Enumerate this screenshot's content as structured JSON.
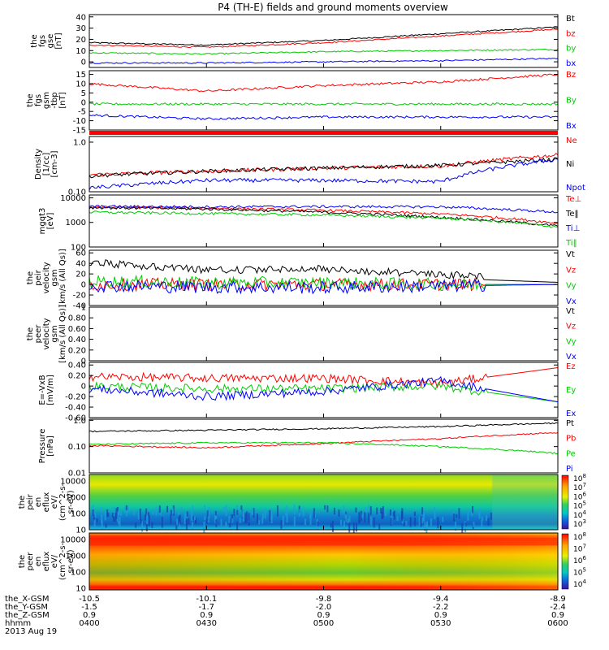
{
  "chart_data": [
    {
      "type": "line",
      "ylabel": [
        "the",
        "fgs",
        "gse",
        "[nT]"
      ],
      "yticks": [
        0,
        10,
        20,
        30,
        40
      ],
      "ylim": [
        -5,
        42
      ],
      "series": [
        {
          "name": "Bt",
          "color": "#000000",
          "x": [
            "0400",
            "0430",
            "0500",
            "0530",
            "0600"
          ],
          "values": [
            17,
            15,
            19,
            25,
            31
          ]
        },
        {
          "name": "bz",
          "color": "#ff0000",
          "x": [
            "0400",
            "0430",
            "0500",
            "0530",
            "0600"
          ],
          "values": [
            15,
            13,
            17,
            23,
            29
          ]
        },
        {
          "name": "by",
          "color": "#00cc00",
          "x": [
            "0400",
            "0430",
            "0500",
            "0530",
            "0600"
          ],
          "values": [
            8,
            7,
            9,
            10,
            11
          ]
        },
        {
          "name": "bx",
          "color": "#0000ff",
          "x": [
            "0400",
            "0430",
            "0500",
            "0530",
            "0600"
          ],
          "values": [
            -1,
            -1,
            0,
            1,
            3
          ]
        }
      ]
    },
    {
      "type": "line",
      "ylabel": [
        "the",
        "fgs",
        "gsm",
        "-tbp",
        "[nT]"
      ],
      "yticks": [
        -15,
        -10,
        -5,
        0,
        5,
        10,
        15
      ],
      "ylim": [
        -15,
        17
      ],
      "series": [
        {
          "name": "Bz",
          "color": "#ff0000",
          "x": [
            "0400",
            "0430",
            "0500",
            "0530",
            "0600"
          ],
          "values": [
            10,
            6,
            9,
            11,
            15
          ]
        },
        {
          "name": "By",
          "color": "#00cc00",
          "x": [
            "0400",
            "0430",
            "0500",
            "0530",
            "0600"
          ],
          "values": [
            -1,
            -1,
            -1,
            -1,
            -1
          ]
        },
        {
          "name": "Bx",
          "color": "#0000ff",
          "x": [
            "0400",
            "0430",
            "0500",
            "0530",
            "0600"
          ],
          "values": [
            -7,
            -9,
            -8,
            -8,
            -8
          ]
        }
      ]
    },
    {
      "type": "line",
      "yscale": "log",
      "ylabel": [
        "Density",
        "[1/cc]",
        "[cm-3]"
      ],
      "yticks": [
        0.1,
        1.0
      ],
      "ylim": [
        0.1,
        1.3
      ],
      "series": [
        {
          "name": "Ne",
          "color": "#ff0000",
          "x": [
            "0400",
            "0430",
            "0500",
            "0530",
            "0600"
          ],
          "values": [
            0.22,
            0.26,
            0.3,
            0.33,
            0.55
          ]
        },
        {
          "name": "Ni",
          "color": "#000000",
          "x": [
            "0400",
            "0430",
            "0500",
            "0530",
            "0600"
          ],
          "values": [
            0.21,
            0.26,
            0.3,
            0.34,
            0.45
          ]
        },
        {
          "name": "Npot",
          "color": "#0000ff",
          "x": [
            "0400",
            "0430",
            "0500",
            "0530",
            "0600"
          ],
          "values": [
            0.12,
            0.17,
            0.17,
            0.16,
            0.45
          ]
        }
      ]
    },
    {
      "type": "line",
      "yscale": "log",
      "ylabel": [
        "mgqt3",
        "[eV]"
      ],
      "yticks": [
        100,
        1000,
        10000
      ],
      "ylim": [
        100,
        13000
      ],
      "series": [
        {
          "name": "Te⊥",
          "color": "#ff0000",
          "x": [
            "0400",
            "0430",
            "0500",
            "0530",
            "0600"
          ],
          "values": [
            4200,
            3800,
            3100,
            2200,
            900
          ]
        },
        {
          "name": "Te‖",
          "color": "#000000",
          "x": [
            "0400",
            "0430",
            "0500",
            "0530",
            "0600"
          ],
          "values": [
            4000,
            3500,
            2600,
            1600,
            700
          ]
        },
        {
          "name": "Ti⊥",
          "color": "#0000ff",
          "x": [
            "0400",
            "0430",
            "0500",
            "0530",
            "0600"
          ],
          "values": [
            4500,
            4300,
            4400,
            4300,
            2600
          ]
        },
        {
          "name": "Ti‖",
          "color": "#00cc00",
          "x": [
            "0400",
            "0430",
            "0500",
            "0530",
            "0600"
          ],
          "values": [
            2600,
            2300,
            2000,
            1500,
            650
          ]
        }
      ]
    },
    {
      "type": "line",
      "ylabel": [
        "the",
        "peir",
        "velocity",
        "gsm",
        "[km/s (All Qs)]"
      ],
      "yticks": [
        -40,
        -20,
        0,
        20,
        40,
        60
      ],
      "ylim": [
        -40,
        65
      ],
      "series": [
        {
          "name": "Vt",
          "color": "#000000",
          "x": [
            "0400",
            "0430",
            "0500",
            "0530",
            "0600"
          ],
          "values": [
            35,
            20,
            22,
            12,
            4
          ]
        },
        {
          "name": "Vz",
          "color": "#ff0000",
          "x": [
            "0400",
            "0430",
            "0500",
            "0530",
            "0600"
          ],
          "values": [
            0,
            0,
            0,
            0,
            0
          ]
        },
        {
          "name": "Vy",
          "color": "#00cc00",
          "x": [
            "0400",
            "0430",
            "0500",
            "0530",
            "0600"
          ],
          "values": [
            6,
            3,
            3,
            0,
            0
          ]
        },
        {
          "name": "Vx",
          "color": "#0000ff",
          "x": [
            "0400",
            "0430",
            "0500",
            "0530",
            "0600"
          ],
          "values": [
            -2,
            -5,
            -6,
            -3,
            0
          ]
        }
      ]
    },
    {
      "type": "line",
      "ylabel": [
        "the",
        "peer",
        "velocity",
        "gsm",
        "[km/s (All Qs)]"
      ],
      "yticks": [
        0.0,
        0.2,
        0.4,
        0.6,
        0.8,
        1.0
      ],
      "ylim": [
        0,
        1
      ],
      "series": [
        {
          "name": "Vt",
          "color": "#000000",
          "x": [],
          "values": []
        },
        {
          "name": "Vz",
          "color": "#ff0000",
          "x": [],
          "values": []
        },
        {
          "name": "Vy",
          "color": "#00cc00",
          "x": [],
          "values": []
        },
        {
          "name": "Vx",
          "color": "#0000ff",
          "x": [],
          "values": []
        }
      ]
    },
    {
      "type": "line",
      "ylabel": [
        "E=-VxB",
        "[mV/m]"
      ],
      "yticks": [
        -0.6,
        -0.4,
        -0.2,
        0.0,
        0.2,
        0.4
      ],
      "ylim": [
        -0.6,
        0.45
      ],
      "series": [
        {
          "name": "Ez",
          "color": "#ff0000",
          "x": [
            "0400",
            "0430",
            "0500",
            "0530",
            "0600"
          ],
          "values": [
            0.18,
            0.15,
            0.15,
            0.05,
            0.35
          ]
        },
        {
          "name": "Ey",
          "color": "#00cc00",
          "x": [
            "0400",
            "0430",
            "0500",
            "0530",
            "0600"
          ],
          "values": [
            0.0,
            -0.05,
            -0.05,
            0.0,
            -0.3
          ]
        },
        {
          "name": "Ex",
          "color": "#0000ff",
          "x": [
            "0400",
            "0430",
            "0500",
            "0530",
            "0600"
          ],
          "values": [
            -0.05,
            -0.2,
            -0.1,
            0.1,
            -0.3
          ]
        }
      ]
    },
    {
      "type": "line",
      "yscale": "log",
      "ylabel": [
        "Pressure",
        "[nPa]"
      ],
      "yticks": [
        0.01,
        0.1,
        1.0
      ],
      "ylim": [
        0.01,
        1.1
      ],
      "series": [
        {
          "name": "Pt",
          "color": "#000000",
          "x": [
            "0400",
            "0430",
            "0500",
            "0530",
            "0600"
          ],
          "values": [
            0.38,
            0.42,
            0.48,
            0.58,
            0.78
          ]
        },
        {
          "name": "Pb",
          "color": "#ff0000",
          "x": [
            "0400",
            "0430",
            "0500",
            "0530",
            "0600"
          ],
          "values": [
            0.11,
            0.09,
            0.13,
            0.2,
            0.34
          ]
        },
        {
          "name": "Pe",
          "color": "#00cc00",
          "x": [
            "0400",
            "0430",
            "0500",
            "0530",
            "0600"
          ],
          "values": [
            0.12,
            0.14,
            0.14,
            0.1,
            0.055
          ]
        },
        {
          "name": "Pi",
          "color": "#0000ff",
          "x": [],
          "values": []
        }
      ]
    },
    {
      "type": "heatmap",
      "ylabel": [
        "the",
        "peir",
        "en",
        "eflux",
        "eV/",
        "(cm^2-s-",
        "sr-eV)"
      ],
      "yscale": "log",
      "yticks": [
        10,
        100,
        1000,
        10000
      ],
      "ylim": [
        10,
        25000
      ],
      "colorbar": {
        "labels": [
          "10^8",
          "10^7",
          "10^6",
          "10^5",
          "10^4",
          "10^3"
        ]
      }
    },
    {
      "type": "heatmap",
      "ylabel": [
        "the",
        "peer",
        "en",
        "eflux",
        "eV/",
        "(cm^2-s-",
        "sr-eV)"
      ],
      "yscale": "log",
      "yticks": [
        10,
        100,
        1000,
        10000
      ],
      "ylim": [
        8,
        25000
      ],
      "colorbar": {
        "labels": [
          "10^8",
          "10^7",
          "10^6",
          "10^5",
          "10^4"
        ]
      }
    }
  ],
  "title": "P4 (TH-E) fields and ground moments overview",
  "xaxis": {
    "rows": [
      {
        "label": "the_X-GSM",
        "values": [
          "-10.5",
          "-10.1",
          "-9.8",
          "-9.4",
          "-8.9"
        ]
      },
      {
        "label": "the_Y-GSM",
        "values": [
          "-1.5",
          "-1.7",
          "-2.0",
          "-2.2",
          "-2.4"
        ]
      },
      {
        "label": "the_Z-GSM",
        "values": [
          "0.9",
          "0.9",
          "0.9",
          "0.9",
          "0.9"
        ]
      },
      {
        "label": "hhmm",
        "values": [
          "0400",
          "0430",
          "0500",
          "0530",
          "0600"
        ]
      }
    ],
    "date": "2013 Aug 19"
  }
}
